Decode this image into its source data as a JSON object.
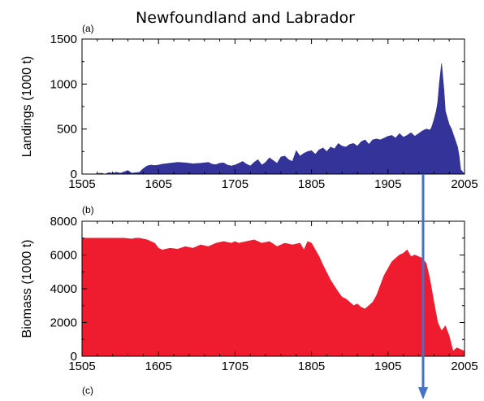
{
  "figure": {
    "title": "Newfoundland and Labrador",
    "colors": {
      "landings": "#333399",
      "biomass": "#ee1c2e",
      "arrow": "#4472c4",
      "axis": "#000000"
    }
  },
  "chart_data": [
    {
      "panel_label": "(a)",
      "type": "area",
      "ylabel": "Landings (1000 t)",
      "xlabel": "",
      "xlim": [
        1505,
        2005
      ],
      "ylim": [
        0,
        1500
      ],
      "xticks": [
        1505,
        1605,
        1705,
        1805,
        1905,
        2005
      ],
      "yticks": [
        0,
        500,
        1000,
        1500
      ],
      "x": [
        1505,
        1520,
        1530,
        1535,
        1540,
        1545,
        1550,
        1555,
        1560,
        1565,
        1570,
        1575,
        1580,
        1585,
        1590,
        1595,
        1600,
        1605,
        1610,
        1620,
        1630,
        1640,
        1650,
        1660,
        1670,
        1675,
        1680,
        1685,
        1690,
        1695,
        1700,
        1705,
        1710,
        1715,
        1720,
        1725,
        1730,
        1735,
        1740,
        1745,
        1750,
        1755,
        1760,
        1765,
        1770,
        1775,
        1780,
        1785,
        1790,
        1795,
        1800,
        1805,
        1810,
        1815,
        1820,
        1825,
        1830,
        1835,
        1840,
        1845,
        1850,
        1855,
        1860,
        1865,
        1870,
        1875,
        1880,
        1885,
        1890,
        1895,
        1900,
        1905,
        1910,
        1915,
        1920,
        1925,
        1930,
        1935,
        1940,
        1945,
        1950,
        1955,
        1960,
        1962,
        1965,
        1968,
        1970,
        1972,
        1975,
        1978,
        1980,
        1985,
        1988,
        1990,
        1992,
        1994,
        1996,
        1998,
        2000,
        2005
      ],
      "series": [
        {
          "values": [
            0,
            0,
            10,
            0,
            15,
            10,
            20,
            10,
            25,
            40,
            10,
            15,
            20,
            60,
            90,
            100,
            95,
            100,
            110,
            120,
            130,
            125,
            115,
            120,
            130,
            110,
            105,
            120,
            125,
            100,
            90,
            100,
            120,
            140,
            110,
            90,
            130,
            160,
            100,
            130,
            180,
            150,
            120,
            190,
            200,
            160,
            140,
            260,
            200,
            230,
            250,
            260,
            220,
            270,
            290,
            250,
            300,
            280,
            340,
            310,
            300,
            330,
            340,
            310,
            360,
            380,
            330,
            380,
            390,
            380,
            400,
            420,
            430,
            400,
            450,
            410,
            430,
            460,
            420,
            450,
            480,
            500,
            490,
            520,
            600,
            700,
            800,
            1000,
            1230,
            950,
            700,
            550,
            500,
            450,
            400,
            350,
            300,
            200,
            50,
            0
          ]
        }
      ]
    },
    {
      "panel_label": "(b)",
      "type": "area",
      "ylabel": "Biomass (1000 t)",
      "xlabel": "",
      "xlim": [
        1505,
        2005
      ],
      "ylim": [
        0,
        8000
      ],
      "xticks": [
        1505,
        1605,
        1705,
        1805,
        1905,
        2005
      ],
      "yticks": [
        0,
        2000,
        4000,
        6000,
        8000
      ],
      "x": [
        1505,
        1520,
        1530,
        1540,
        1550,
        1560,
        1570,
        1575,
        1580,
        1590,
        1600,
        1605,
        1610,
        1620,
        1630,
        1640,
        1650,
        1660,
        1670,
        1680,
        1690,
        1700,
        1705,
        1710,
        1720,
        1730,
        1740,
        1750,
        1760,
        1770,
        1780,
        1790,
        1795,
        1800,
        1805,
        1810,
        1815,
        1820,
        1830,
        1840,
        1845,
        1850,
        1855,
        1860,
        1865,
        1870,
        1875,
        1880,
        1885,
        1890,
        1895,
        1900,
        1905,
        1910,
        1915,
        1920,
        1925,
        1930,
        1935,
        1940,
        1945,
        1950,
        1955,
        1960,
        1965,
        1970,
        1975,
        1980,
        1985,
        1990,
        1995,
        2000,
        2005
      ],
      "series": [
        {
          "values": [
            7000,
            7000,
            7000,
            7000,
            7000,
            7000,
            6950,
            7000,
            7000,
            6900,
            6700,
            6400,
            6300,
            6400,
            6350,
            6500,
            6400,
            6600,
            6500,
            6700,
            6800,
            6700,
            6800,
            6700,
            6800,
            6900,
            6700,
            6800,
            6500,
            6700,
            6600,
            6700,
            6300,
            6800,
            6700,
            6300,
            5900,
            5400,
            4500,
            3800,
            3500,
            3400,
            3200,
            3000,
            3100,
            2900,
            2800,
            3000,
            3200,
            3600,
            4200,
            4800,
            5200,
            5600,
            5800,
            6000,
            6100,
            6300,
            5900,
            6000,
            5900,
            5800,
            5500,
            4500,
            3200,
            2000,
            1500,
            1800,
            1200,
            300,
            500,
            400,
            300
          ]
        }
      ]
    }
  ],
  "panel_c_label": "(c)"
}
